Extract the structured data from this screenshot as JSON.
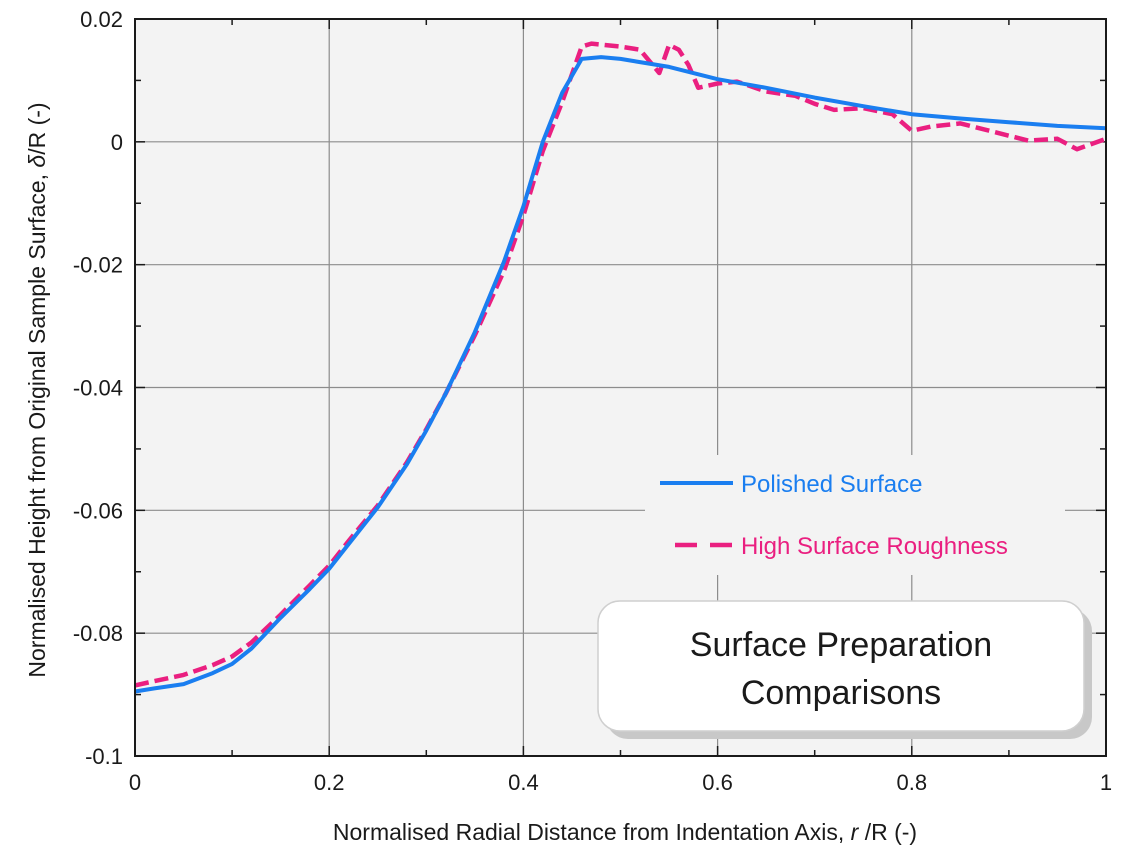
{
  "chart_data": {
    "type": "line",
    "xlabel_main": "Normalised Radial Distance from Indentation Axis, ",
    "xlabel_var": "r",
    "xlabel_tail": " /R (-)",
    "ylabel_main": "Normalised Height from Original Sample Surface, ",
    "ylabel_var": "δ",
    "ylabel_tail": "/R (-)",
    "xlim": [
      0,
      1
    ],
    "ylim": [
      -0.1,
      0.02
    ],
    "x_ticks": [
      0,
      0.2,
      0.4,
      0.6,
      0.8,
      1
    ],
    "x_tick_labels": [
      "0",
      "0.2",
      "0.4",
      "0.6",
      "0.8",
      "1"
    ],
    "y_ticks": [
      -0.1,
      -0.08,
      -0.06,
      -0.04,
      -0.02,
      0,
      0.02
    ],
    "y_tick_labels": [
      "-0.1",
      "-0.08",
      "-0.06",
      "-0.04",
      "-0.02",
      "0",
      "0.02"
    ],
    "grid": true,
    "legend_position": "right",
    "annotation": {
      "line1": "Surface Preparation",
      "line2": "Comparisons"
    },
    "colors": {
      "plot_bg": "#f3f3f3",
      "grid": "#8c8c8c"
    },
    "series": [
      {
        "name": "Polished Surface",
        "color": "#1a7ef0",
        "dash": "solid",
        "x": [
          0,
          0.02,
          0.05,
          0.08,
          0.1,
          0.12,
          0.15,
          0.18,
          0.2,
          0.22,
          0.25,
          0.28,
          0.3,
          0.32,
          0.35,
          0.38,
          0.4,
          0.42,
          0.44,
          0.46,
          0.48,
          0.5,
          0.55,
          0.6,
          0.65,
          0.7,
          0.75,
          0.8,
          0.85,
          0.9,
          0.95,
          1.0
        ],
        "y": [
          -0.0895,
          -0.089,
          -0.0883,
          -0.0865,
          -0.085,
          -0.0825,
          -0.0775,
          -0.0728,
          -0.0695,
          -0.0655,
          -0.0595,
          -0.0525,
          -0.047,
          -0.041,
          -0.031,
          -0.0195,
          -0.0105,
          0.0,
          0.008,
          0.0135,
          0.0138,
          0.0135,
          0.0122,
          0.0102,
          0.0088,
          0.0072,
          0.0058,
          0.0045,
          0.0038,
          0.0032,
          0.0026,
          0.0022
        ]
      },
      {
        "name": "High Surface Roughness",
        "color": "#ea1f80",
        "dash": "dashed",
        "x": [
          0,
          0.02,
          0.05,
          0.08,
          0.1,
          0.12,
          0.15,
          0.18,
          0.2,
          0.22,
          0.25,
          0.28,
          0.3,
          0.32,
          0.35,
          0.38,
          0.4,
          0.42,
          0.44,
          0.46,
          0.47,
          0.5,
          0.52,
          0.54,
          0.55,
          0.56,
          0.57,
          0.58,
          0.6,
          0.62,
          0.65,
          0.68,
          0.7,
          0.72,
          0.75,
          0.78,
          0.8,
          0.82,
          0.85,
          0.88,
          0.9,
          0.92,
          0.95,
          0.97,
          1.0
        ],
        "y": [
          -0.0885,
          -0.0878,
          -0.0868,
          -0.0852,
          -0.0838,
          -0.0815,
          -0.077,
          -0.0722,
          -0.069,
          -0.065,
          -0.0592,
          -0.0522,
          -0.0468,
          -0.041,
          -0.0315,
          -0.021,
          -0.012,
          -0.0015,
          0.0065,
          0.0155,
          0.016,
          0.0155,
          0.015,
          0.0112,
          0.0158,
          0.015,
          0.0125,
          0.0088,
          0.0095,
          0.0098,
          0.0082,
          0.0075,
          0.0062,
          0.0052,
          0.0055,
          0.0045,
          0.0018,
          0.0025,
          0.003,
          0.0018,
          0.001,
          0.0002,
          0.0005,
          -0.0012,
          0.0005
        ]
      }
    ]
  }
}
